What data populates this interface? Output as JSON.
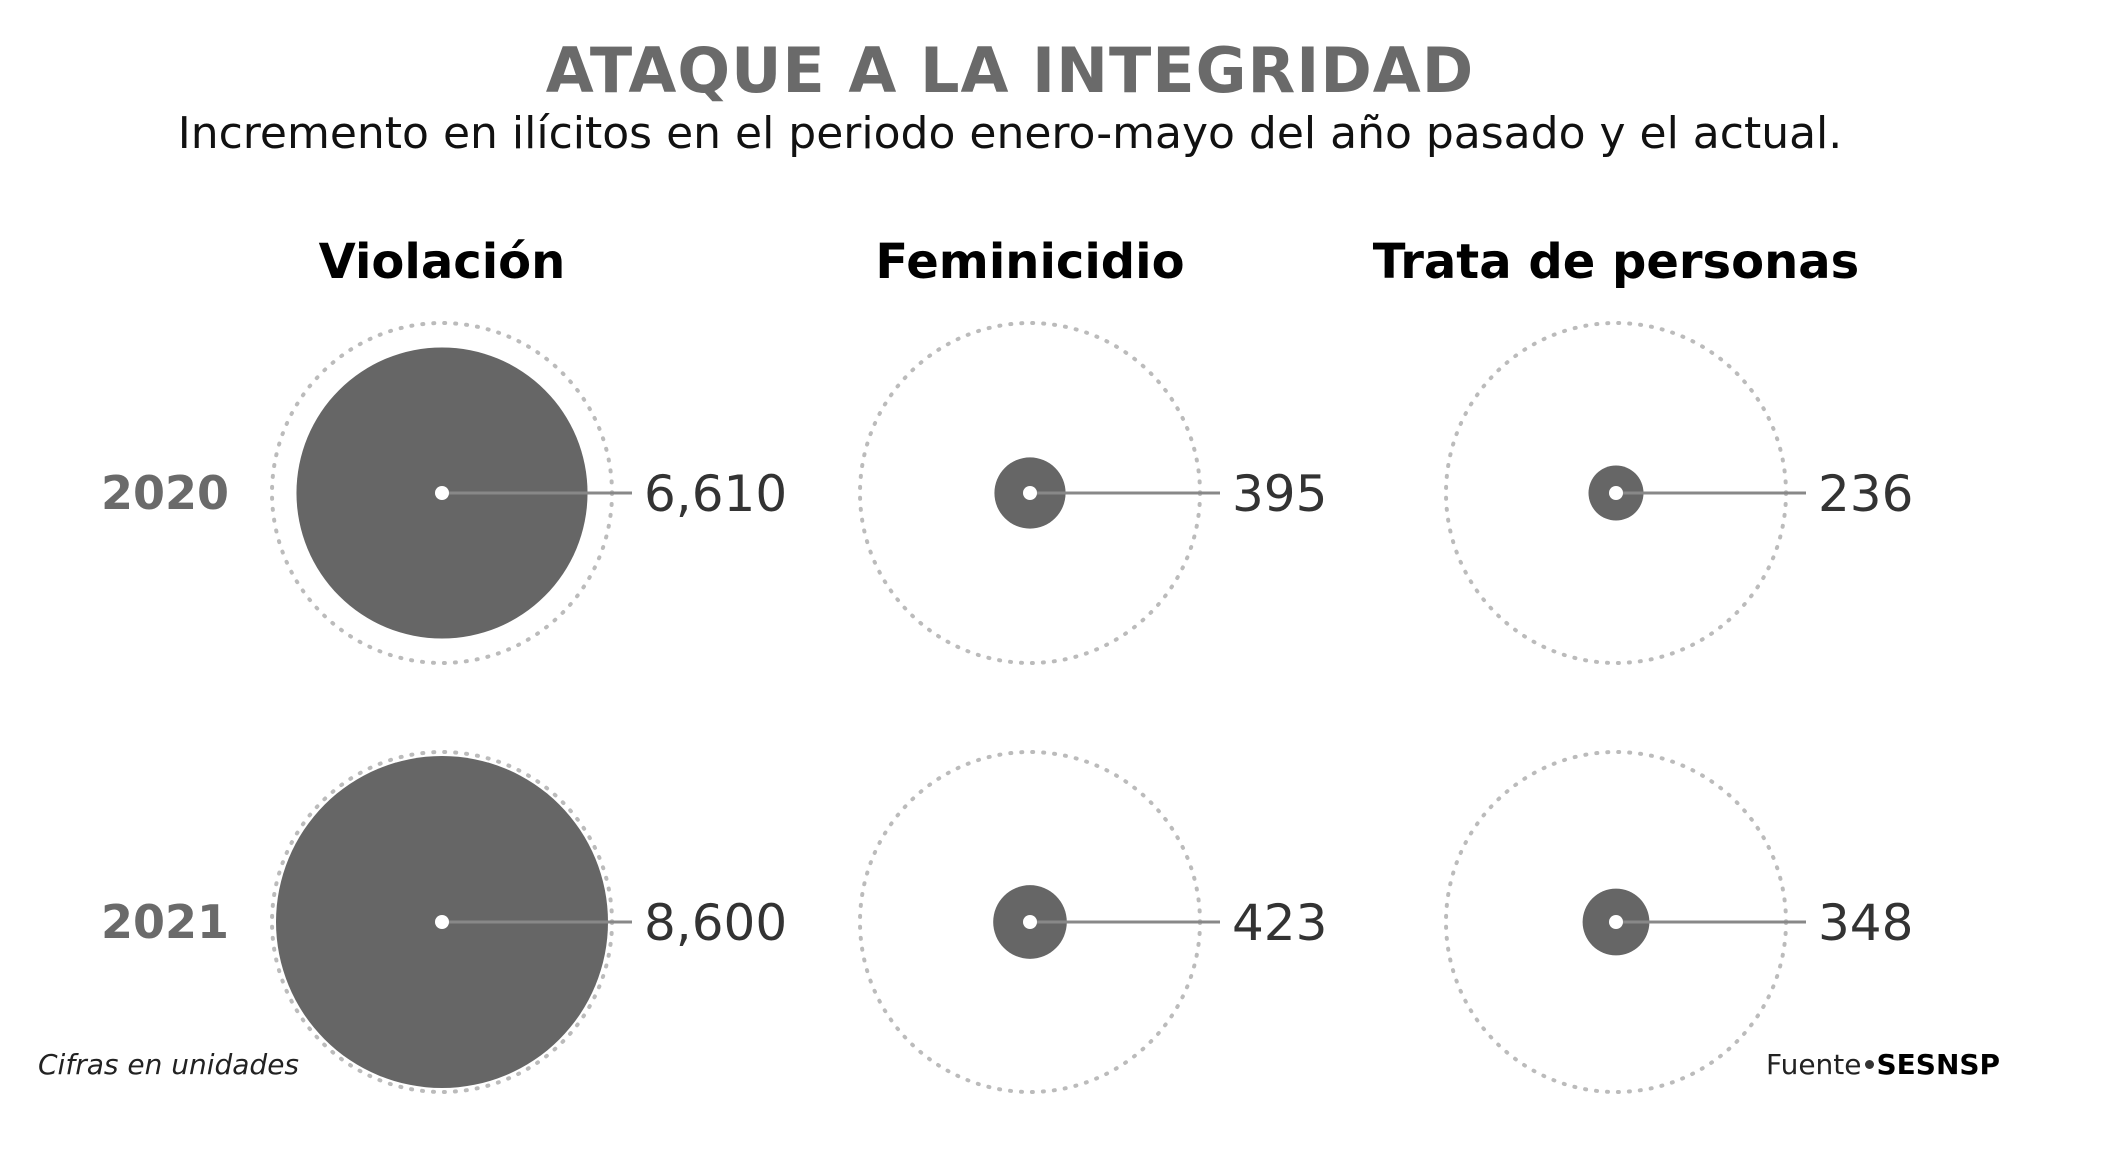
{
  "title": "ATAQUE A LA INTEGRIDAD",
  "subtitle": "Incremento en ilícitos en el periodo enero-mayo del año pasado y el actual.",
  "note": "Cifras en unidades",
  "source": {
    "label": "Fuente",
    "name": "SESNSP"
  },
  "colors": {
    "bubble": "#666666",
    "outline": "#bbbbbb",
    "leader": "#888888",
    "title": "#6a6a6a"
  },
  "chart_data": {
    "type": "bubble",
    "title": "ATAQUE A LA INTEGRIDAD",
    "subtitle": "Incremento en ilícitos en el periodo enero-mayo del año pasado y el actual.",
    "categories": [
      "Violación",
      "Feminicidio",
      "Trata de personas"
    ],
    "years": [
      "2020",
      "2021"
    ],
    "values": [
      {
        "category": "Violación",
        "year": "2020",
        "value": 6610,
        "label": "6,610"
      },
      {
        "category": "Violación",
        "year": "2021",
        "value": 8600,
        "label": "8,600"
      },
      {
        "category": "Feminicidio",
        "year": "2020",
        "value": 395,
        "label": "395"
      },
      {
        "category": "Feminicidio",
        "year": "2021",
        "value": 423,
        "label": "423"
      },
      {
        "category": "Trata de personas",
        "year": "2020",
        "value": 236,
        "label": "236"
      },
      {
        "category": "Trata de personas",
        "year": "2021",
        "value": 348,
        "label": "348"
      }
    ],
    "max_value": 8600
  }
}
